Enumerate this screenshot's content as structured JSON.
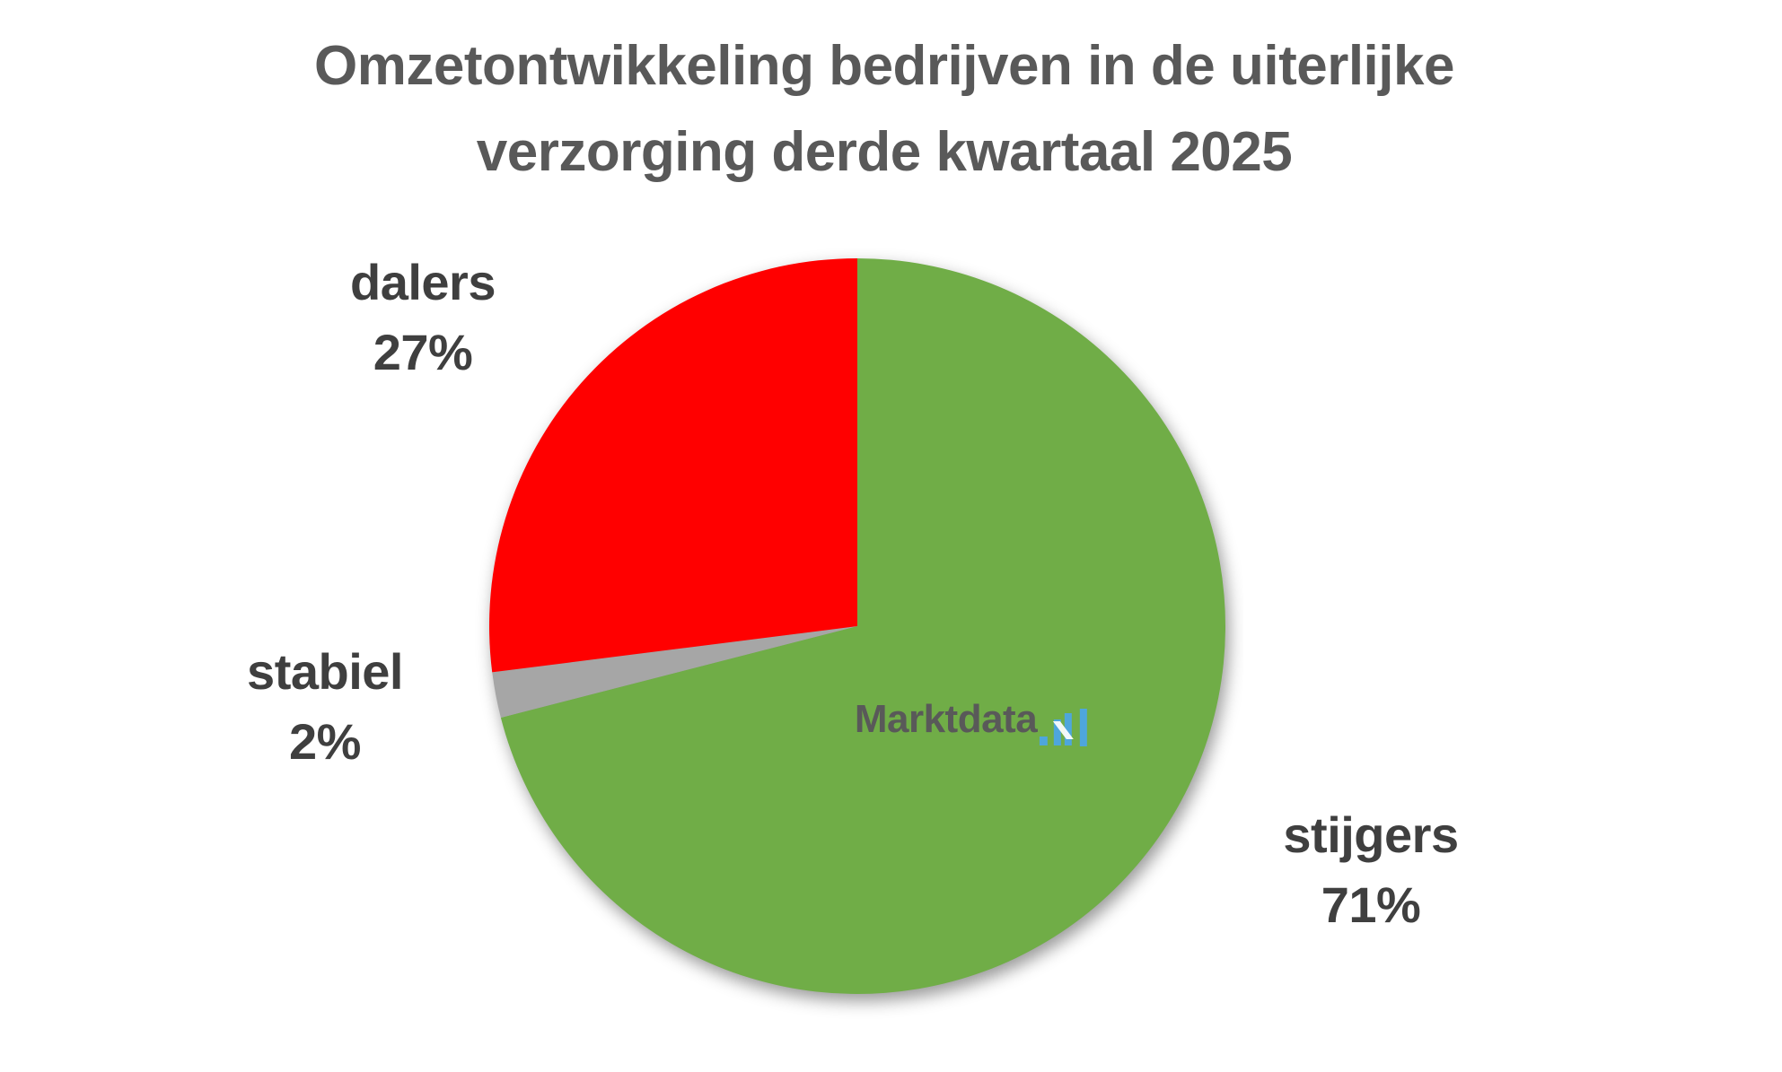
{
  "page": {
    "background_color": "#FFFFFF"
  },
  "title": {
    "lines": [
      "Omzetontwikkeling bedrijven in de uiterlijke",
      "verzorging derde kwartaal 2025"
    ],
    "color": "#595959"
  },
  "watermark": {
    "brand": "Marktdata",
    "dot": ".",
    "suffix": "nl",
    "brand_color": "#595959",
    "accent_color": "#4EA6DC"
  },
  "chart_data": {
    "type": "pie",
    "title": "Omzetontwikkeling bedrijven in de uiterlijke verzorging derde kwartaal 2025",
    "start_angle_deg": 0,
    "direction": "clockwise",
    "legend": "none",
    "label_style": "category name and percent placed outside the pie",
    "slices": [
      {
        "name": "stijgers",
        "value_pct": 71,
        "label": "stijgers",
        "value_label": "71%",
        "color": "#70AD47",
        "label_position": "bottom-right"
      },
      {
        "name": "stabiel",
        "value_pct": 2,
        "label": "stabiel",
        "value_label": "2%",
        "color": "#A6A6A6",
        "label_position": "left"
      },
      {
        "name": "dalers",
        "value_pct": 27,
        "label": "dalers",
        "value_label": "27%",
        "color": "#FF0000",
        "label_position": "top-left"
      }
    ]
  }
}
